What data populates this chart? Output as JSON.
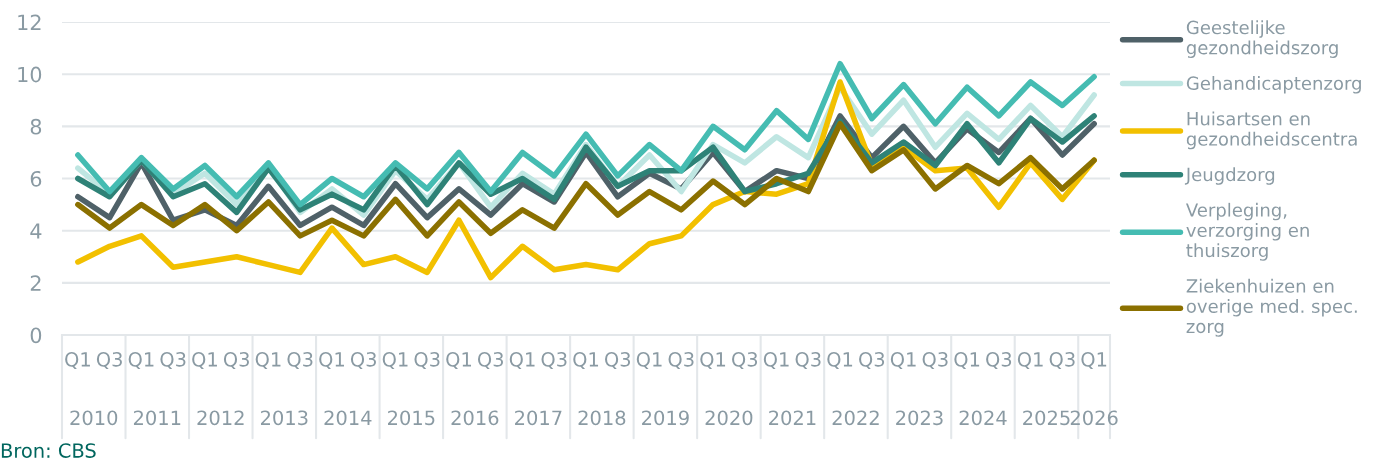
{
  "chart_data": {
    "type": "line",
    "categories": [
      "Q1",
      "Q3",
      "Q1",
      "Q3",
      "Q1",
      "Q3",
      "Q1",
      "Q3",
      "Q1",
      "Q3",
      "Q1",
      "Q3",
      "Q1",
      "Q3",
      "Q1",
      "Q3",
      "Q1",
      "Q3",
      "Q1",
      "Q3",
      "Q1",
      "Q3",
      "Q1",
      "Q3",
      "Q1",
      "Q3",
      "Q1",
      "Q3",
      "Q1",
      "Q3",
      "Q1",
      "Q3",
      "Q1"
    ],
    "series": [
      {
        "name": "Geestelijke\ngezondheidszorg",
        "color": "#4f6168",
        "values": [
          5.3,
          4.5,
          6.6,
          4.4,
          4.8,
          4.2,
          5.7,
          4.2,
          4.9,
          4.2,
          5.8,
          4.5,
          5.6,
          4.6,
          5.8,
          5.1,
          7.0,
          5.3,
          6.2,
          5.6,
          7.0,
          5.5,
          6.3,
          6.0,
          8.4,
          6.8,
          8.0,
          6.6,
          7.9,
          7.0,
          8.3,
          6.9,
          8.1
        ]
      },
      {
        "name": "Gehandicaptenzorg",
        "color": "#bfe6e2",
        "values": [
          6.4,
          5.4,
          6.7,
          5.4,
          6.2,
          5.0,
          6.5,
          4.7,
          5.6,
          4.6,
          6.3,
          5.2,
          6.6,
          4.9,
          6.2,
          5.4,
          7.3,
          5.7,
          6.9,
          5.5,
          7.3,
          6.6,
          7.6,
          6.8,
          9.5,
          7.7,
          9.0,
          7.2,
          8.5,
          7.5,
          8.8,
          7.6,
          9.2
        ]
      },
      {
        "name": "Huisartsen en\ngezondheidscentra",
        "color": "#f2c000",
        "values": [
          2.8,
          3.4,
          3.8,
          2.6,
          2.8,
          3.0,
          2.7,
          2.4,
          4.1,
          2.7,
          3.0,
          2.4,
          4.4,
          2.2,
          3.4,
          2.5,
          2.7,
          2.5,
          3.5,
          3.8,
          5.0,
          5.5,
          5.4,
          5.8,
          9.7,
          6.5,
          7.2,
          6.3,
          6.4,
          4.9,
          6.6,
          5.2,
          6.7
        ]
      },
      {
        "name": "Jeugdzorg",
        "color": "#2e8277",
        "values": [
          6.0,
          5.3,
          6.7,
          5.3,
          5.8,
          4.7,
          6.4,
          4.8,
          5.4,
          4.8,
          6.5,
          5.0,
          6.6,
          5.4,
          6.0,
          5.2,
          7.2,
          5.7,
          6.3,
          6.3,
          7.2,
          5.5,
          5.8,
          6.2,
          8.2,
          6.6,
          7.4,
          6.5,
          8.1,
          6.6,
          8.3,
          7.4,
          8.4
        ]
      },
      {
        "name": "Verpleging,\nverzorging en\nthuiszorg",
        "color": "#45bcb2",
        "values": [
          6.9,
          5.5,
          6.8,
          5.6,
          6.5,
          5.3,
          6.6,
          5.0,
          6.0,
          5.3,
          6.6,
          5.6,
          7.0,
          5.5,
          7.0,
          6.1,
          7.7,
          6.1,
          7.3,
          6.3,
          8.0,
          7.1,
          8.6,
          7.5,
          10.4,
          8.3,
          9.6,
          8.1,
          9.5,
          8.4,
          9.7,
          8.8,
          9.9
        ]
      },
      {
        "name": "Ziekenhuizen en\noverige med. spec.\nzorg",
        "color": "#8b7000",
        "values": [
          5.0,
          4.1,
          5.0,
          4.2,
          5.0,
          4.0,
          5.1,
          3.8,
          4.4,
          3.8,
          5.2,
          3.8,
          5.1,
          3.9,
          4.8,
          4.1,
          5.8,
          4.6,
          5.5,
          4.8,
          5.9,
          5.0,
          6.0,
          5.5,
          8.1,
          6.3,
          7.1,
          5.6,
          6.5,
          5.8,
          6.8,
          5.6,
          6.7
        ]
      }
    ],
    "ylim": [
      0,
      12
    ],
    "yticks": [
      0,
      2,
      4,
      6,
      8,
      10,
      12
    ],
    "grid": "y",
    "legend": "right",
    "marker": "none",
    "line_style": "solid",
    "annotations": [
      "2010",
      "2011",
      "2012",
      "2013",
      "2014",
      "2015",
      "2016",
      "2017",
      "2018",
      "2019",
      "2020",
      "2021",
      "2022",
      "2023",
      "2024",
      "2025",
      "2026",
      "Bron: CBS"
    ]
  }
}
